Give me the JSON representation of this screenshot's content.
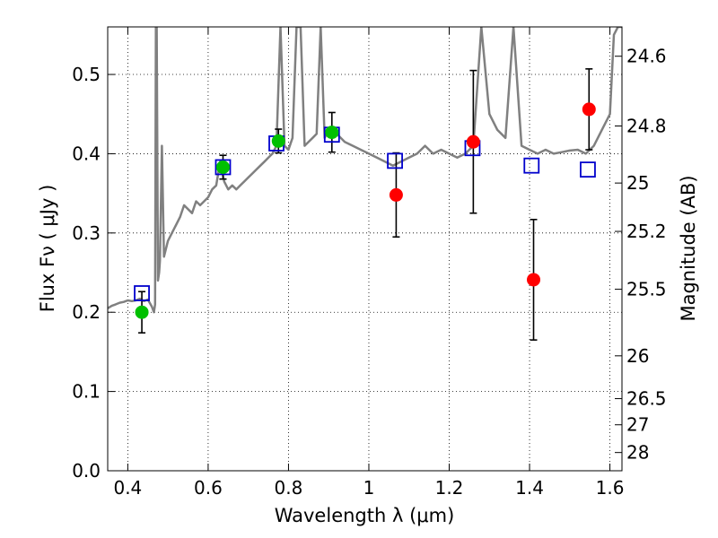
{
  "chart_data": {
    "type": "scatter",
    "title": "",
    "xlabel": "Wavelength  λ (μm)",
    "ylabel": "Flux  Fν  ( μJy )",
    "ylabel_right": "Magnitude (AB)",
    "xlim": [
      0.35,
      1.63
    ],
    "ylim": [
      0.0,
      0.56
    ],
    "grid": true,
    "grid_style": "dotted",
    "x_ticks": [
      0.4,
      0.6,
      0.8,
      1.0,
      1.2,
      1.4,
      1.6
    ],
    "x_tick_labels": [
      "0.4",
      "0.6",
      "0.8",
      "1",
      "1.2",
      "1.4",
      "1.6"
    ],
    "y_ticks": [
      0.0,
      0.1,
      0.2,
      0.3,
      0.4,
      0.5
    ],
    "y_tick_labels": [
      "0.0",
      "0.1",
      "0.2",
      "0.3",
      "0.4",
      "0.5"
    ],
    "right_ticks": [
      {
        "flux": 0.523,
        "label": "24.6"
      },
      {
        "flux": 0.435,
        "label": "24.8"
      },
      {
        "flux": 0.363,
        "label": "25"
      },
      {
        "flux": 0.302,
        "label": "25.2"
      },
      {
        "flux": 0.229,
        "label": "25.5"
      },
      {
        "flux": 0.145,
        "label": "26"
      },
      {
        "flux": 0.091,
        "label": "26.5"
      },
      {
        "flux": 0.058,
        "label": "27"
      },
      {
        "flux": 0.023,
        "label": "28"
      }
    ],
    "series": [
      {
        "kind": "template_spectrum",
        "color": "#808080",
        "x": [
          0.35,
          0.36,
          0.37,
          0.38,
          0.39,
          0.4,
          0.41,
          0.42,
          0.43,
          0.44,
          0.45,
          0.46,
          0.465,
          0.468,
          0.47,
          0.472,
          0.475,
          0.478,
          0.48,
          0.485,
          0.49,
          0.5,
          0.51,
          0.52,
          0.53,
          0.54,
          0.55,
          0.56,
          0.57,
          0.58,
          0.59,
          0.6,
          0.61,
          0.62,
          0.63,
          0.64,
          0.65,
          0.66,
          0.67,
          0.68,
          0.69,
          0.7,
          0.71,
          0.72,
          0.73,
          0.74,
          0.75,
          0.76,
          0.77,
          0.78,
          0.79,
          0.8,
          0.81,
          0.82,
          0.83,
          0.84,
          0.85,
          0.86,
          0.87,
          0.88,
          0.89,
          0.9,
          0.92,
          0.94,
          0.96,
          0.98,
          1.0,
          1.02,
          1.04,
          1.06,
          1.08,
          1.1,
          1.12,
          1.14,
          1.16,
          1.18,
          1.2,
          1.22,
          1.24,
          1.26,
          1.28,
          1.3,
          1.32,
          1.34,
          1.36,
          1.38,
          1.4,
          1.42,
          1.44,
          1.46,
          1.48,
          1.5,
          1.52,
          1.54,
          1.56,
          1.58,
          1.6,
          1.61,
          1.62,
          1.63
        ],
        "y": [
          0.205,
          0.208,
          0.21,
          0.212,
          0.213,
          0.215,
          0.214,
          0.215,
          0.217,
          0.214,
          0.216,
          0.207,
          0.2,
          0.21,
          0.56,
          0.56,
          0.24,
          0.25,
          0.265,
          0.41,
          0.27,
          0.29,
          0.3,
          0.31,
          0.32,
          0.335,
          0.33,
          0.325,
          0.34,
          0.335,
          0.34,
          0.345,
          0.355,
          0.36,
          0.39,
          0.365,
          0.355,
          0.36,
          0.355,
          0.36,
          0.365,
          0.37,
          0.375,
          0.38,
          0.385,
          0.39,
          0.395,
          0.4,
          0.41,
          0.56,
          0.41,
          0.405,
          0.42,
          0.56,
          0.56,
          0.41,
          0.415,
          0.42,
          0.425,
          0.56,
          0.42,
          0.43,
          0.425,
          0.415,
          0.41,
          0.405,
          0.4,
          0.395,
          0.39,
          0.385,
          0.39,
          0.395,
          0.4,
          0.41,
          0.4,
          0.405,
          0.4,
          0.395,
          0.4,
          0.41,
          0.56,
          0.45,
          0.43,
          0.42,
          0.56,
          0.41,
          0.405,
          0.4,
          0.405,
          0.4,
          0.402,
          0.404,
          0.405,
          0.4,
          0.41,
          0.43,
          0.45,
          0.55,
          0.56,
          0.56
        ]
      },
      {
        "kind": "model_photometry",
        "marker": "open-square",
        "color": "#0000cc",
        "x": [
          0.435,
          0.637,
          0.77,
          0.908,
          1.065,
          1.258,
          1.405,
          1.545
        ],
        "y": [
          0.224,
          0.383,
          0.413,
          0.424,
          0.391,
          0.407,
          0.385,
          0.38
        ]
      },
      {
        "kind": "optical_photometry",
        "marker": "filled-circle",
        "color": "#00c000",
        "x": [
          0.435,
          0.637,
          0.775,
          0.908
        ],
        "y": [
          0.2,
          0.383,
          0.416,
          0.427
        ],
        "yerr": [
          0.026,
          0.015,
          0.015,
          0.025
        ]
      },
      {
        "kind": "nir_photometry",
        "marker": "filled-circle",
        "color": "#ff0000",
        "x": [
          1.068,
          1.26,
          1.41,
          1.548
        ],
        "y": [
          0.348,
          0.415,
          0.241,
          0.456
        ],
        "yerr": [
          0.053,
          0.09,
          0.076,
          0.051
        ]
      }
    ]
  }
}
